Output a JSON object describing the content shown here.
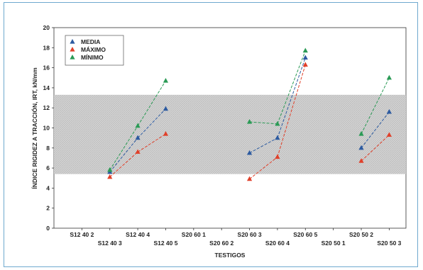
{
  "chart_data": {
    "type": "line",
    "xlabel": "TESTIGOS",
    "ylabel": "ÍNDICE RIGIDEZ A TRACCIÓN, IRT, kN/mm",
    "ylim": [
      0,
      20
    ],
    "yticks": [
      0,
      2,
      4,
      6,
      8,
      10,
      12,
      14,
      16,
      18,
      20
    ],
    "grid": false,
    "legend_position": "top-left",
    "band": {
      "from": 5.4,
      "to": 13.3,
      "color": "#c9c9c9"
    },
    "categories": [
      "S12 40 2",
      "S12 40 3",
      "S12 40 4",
      "S12 40 5",
      "S20 60 1",
      "S20 60 2",
      "S20 60 3",
      "S20 60 4",
      "S20 60 5",
      "S20 50 1",
      "S20 50 2",
      "S20 50 3"
    ],
    "series": [
      {
        "name": "MEDIA",
        "color": "#2c5aa0",
        "values": [
          null,
          5.6,
          9.0,
          11.9,
          null,
          null,
          7.5,
          9.0,
          17.0,
          null,
          8.0,
          11.6
        ]
      },
      {
        "name": "MÁXIMO",
        "color": "#e0402a",
        "values": [
          null,
          5.1,
          7.6,
          9.4,
          null,
          null,
          4.9,
          7.1,
          16.3,
          null,
          6.7,
          9.3
        ]
      },
      {
        "name": "MÍNIMO",
        "color": "#2a9a55",
        "values": [
          null,
          5.8,
          10.2,
          14.7,
          null,
          null,
          10.6,
          10.4,
          17.7,
          null,
          9.4,
          15.0
        ]
      }
    ]
  }
}
